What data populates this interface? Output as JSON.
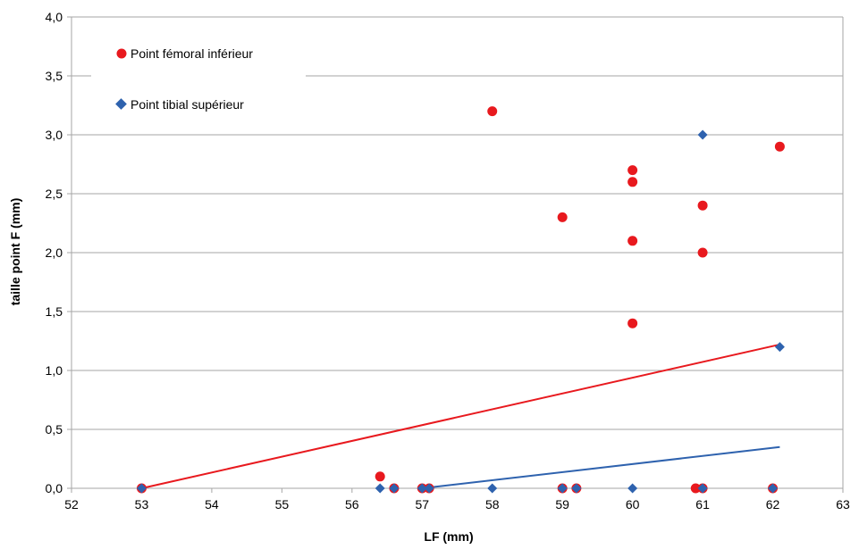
{
  "chart_data": {
    "type": "scatter",
    "xlabel": "LF (mm)",
    "ylabel": "taille point F (mm)",
    "xlim": [
      52,
      63
    ],
    "ylim": [
      0,
      4
    ],
    "x_ticks": [
      "52",
      "53",
      "54",
      "55",
      "56",
      "57",
      "58",
      "59",
      "60",
      "61",
      "62",
      "63"
    ],
    "y_ticks": [
      "0,0",
      "0,5",
      "1,0",
      "1,5",
      "2,0",
      "2,5",
      "3,0",
      "3,5",
      "4,0"
    ],
    "grid": "horizontal",
    "legend_position": "top-left",
    "series": [
      {
        "name": "Point fémoral inférieur",
        "marker": "circle",
        "color": "#e8191e",
        "points": [
          [
            53.0,
            0.0
          ],
          [
            56.4,
            0.1
          ],
          [
            56.6,
            0.0
          ],
          [
            57.0,
            0.0
          ],
          [
            57.1,
            0.0
          ],
          [
            58.0,
            3.2
          ],
          [
            59.0,
            2.3
          ],
          [
            59.0,
            0.0
          ],
          [
            59.2,
            0.0
          ],
          [
            60.0,
            2.7
          ],
          [
            60.0,
            2.6
          ],
          [
            60.0,
            2.1
          ],
          [
            60.0,
            1.4
          ],
          [
            60.9,
            0.0
          ],
          [
            61.0,
            2.4
          ],
          [
            61.0,
            2.0
          ],
          [
            61.0,
            0.0
          ],
          [
            62.0,
            0.0
          ],
          [
            62.1,
            2.9
          ]
        ],
        "trendline": {
          "color": "#e8191e",
          "x": [
            53.0,
            62.1
          ],
          "y": [
            0.0,
            1.22
          ]
        }
      },
      {
        "name": "Point tibial supérieur",
        "marker": "diamond",
        "color": "#2e62ae",
        "points": [
          [
            53.0,
            0.0
          ],
          [
            56.4,
            0.0
          ],
          [
            56.6,
            0.0
          ],
          [
            57.0,
            0.0
          ],
          [
            57.1,
            0.0
          ],
          [
            58.0,
            0.0
          ],
          [
            59.0,
            0.0
          ],
          [
            59.2,
            0.0
          ],
          [
            60.0,
            0.0
          ],
          [
            61.0,
            0.0
          ],
          [
            61.0,
            3.0
          ],
          [
            62.0,
            0.0
          ],
          [
            62.1,
            1.2
          ]
        ],
        "trendline": {
          "color": "#2e62ae",
          "x": [
            57.0,
            62.1
          ],
          "y": [
            0.0,
            0.35
          ]
        }
      }
    ]
  }
}
